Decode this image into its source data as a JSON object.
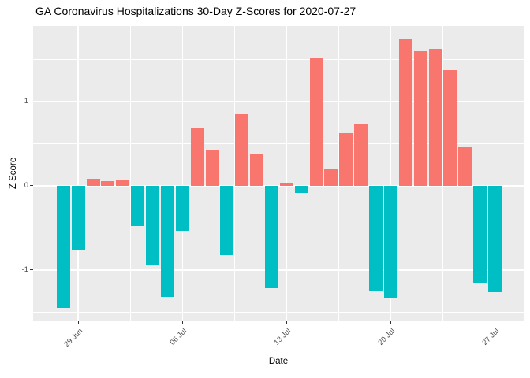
{
  "title": "GA Coronavirus Hospitalizations 30-Day Z-Scores for 2020-07-27",
  "x_axis": {
    "label": "Date",
    "tick_labels": [
      "29 Jun",
      "06 Jul",
      "13 Jul",
      "20 Jul",
      "27 Jul"
    ],
    "tick_day_indices": [
      1,
      8,
      15,
      22,
      29
    ]
  },
  "y_axis": {
    "label": "Z Score",
    "tick_labels": [
      "1",
      "0",
      "-1"
    ],
    "tick_values": [
      1,
      0,
      -1
    ],
    "minor_tick_values": [
      1.5,
      0.5,
      -0.5,
      -1.5
    ]
  },
  "colors": {
    "positive_bar": "#F8766D",
    "negative_bar": "#00BFC4",
    "panel_background": "#EBEBEB",
    "gridline": "#FFFFFF",
    "tick_text": "#4D4D4D",
    "title_text": "#000000"
  },
  "chart_data": {
    "type": "bar",
    "title": "GA Coronavirus Hospitalizations 30-Day Z-Scores for 2020-07-27",
    "xlabel": "Date",
    "ylabel": "Z Score",
    "x": [
      "28 Jun",
      "29 Jun",
      "30 Jun",
      "01 Jul",
      "02 Jul",
      "03 Jul",
      "04 Jul",
      "05 Jul",
      "06 Jul",
      "07 Jul",
      "08 Jul",
      "09 Jul",
      "10 Jul",
      "11 Jul",
      "12 Jul",
      "13 Jul",
      "14 Jul",
      "15 Jul",
      "16 Jul",
      "17 Jul",
      "18 Jul",
      "19 Jul",
      "20 Jul",
      "21 Jul",
      "22 Jul",
      "23 Jul",
      "24 Jul",
      "25 Jul",
      "26 Jul",
      "27 Jul"
    ],
    "values": [
      -1.45,
      -0.76,
      0.08,
      0.06,
      0.07,
      -0.48,
      -0.94,
      -1.32,
      -0.53,
      0.68,
      0.43,
      -0.82,
      0.85,
      0.38,
      -1.22,
      0.03,
      -0.08,
      1.52,
      0.21,
      0.63,
      0.74,
      -1.25,
      -1.34,
      1.75,
      1.6,
      1.63,
      1.38,
      0.46,
      -1.15,
      -1.26
    ],
    "ylim": [
      -1.61,
      1.9
    ],
    "grid": true,
    "legend": false,
    "color_rule": "value >= 0 is salmon #F8766D, value < 0 is teal #00BFC4"
  }
}
